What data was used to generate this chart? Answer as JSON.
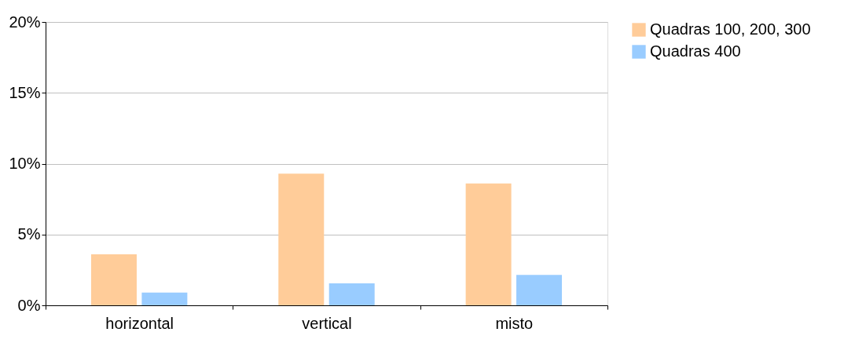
{
  "chart_data": {
    "type": "bar",
    "categories": [
      "horizontal",
      "vertical",
      "misto"
    ],
    "series": [
      {
        "name": "Quadras 100, 200, 300",
        "color": "#ffcc99",
        "values": [
          3.6,
          9.3,
          8.6
        ]
      },
      {
        "name": "Quadras 400",
        "color": "#99ccff",
        "values": [
          0.9,
          1.55,
          2.15
        ]
      }
    ],
    "ylim": [
      0,
      20
    ],
    "yticks": [
      {
        "value": 0,
        "label": "0%"
      },
      {
        "value": 5,
        "label": "5%"
      },
      {
        "value": 10,
        "label": "10%"
      },
      {
        "value": 15,
        "label": "15%"
      },
      {
        "value": 20,
        "label": "20%"
      }
    ],
    "grid": "y",
    "legend": "right"
  }
}
